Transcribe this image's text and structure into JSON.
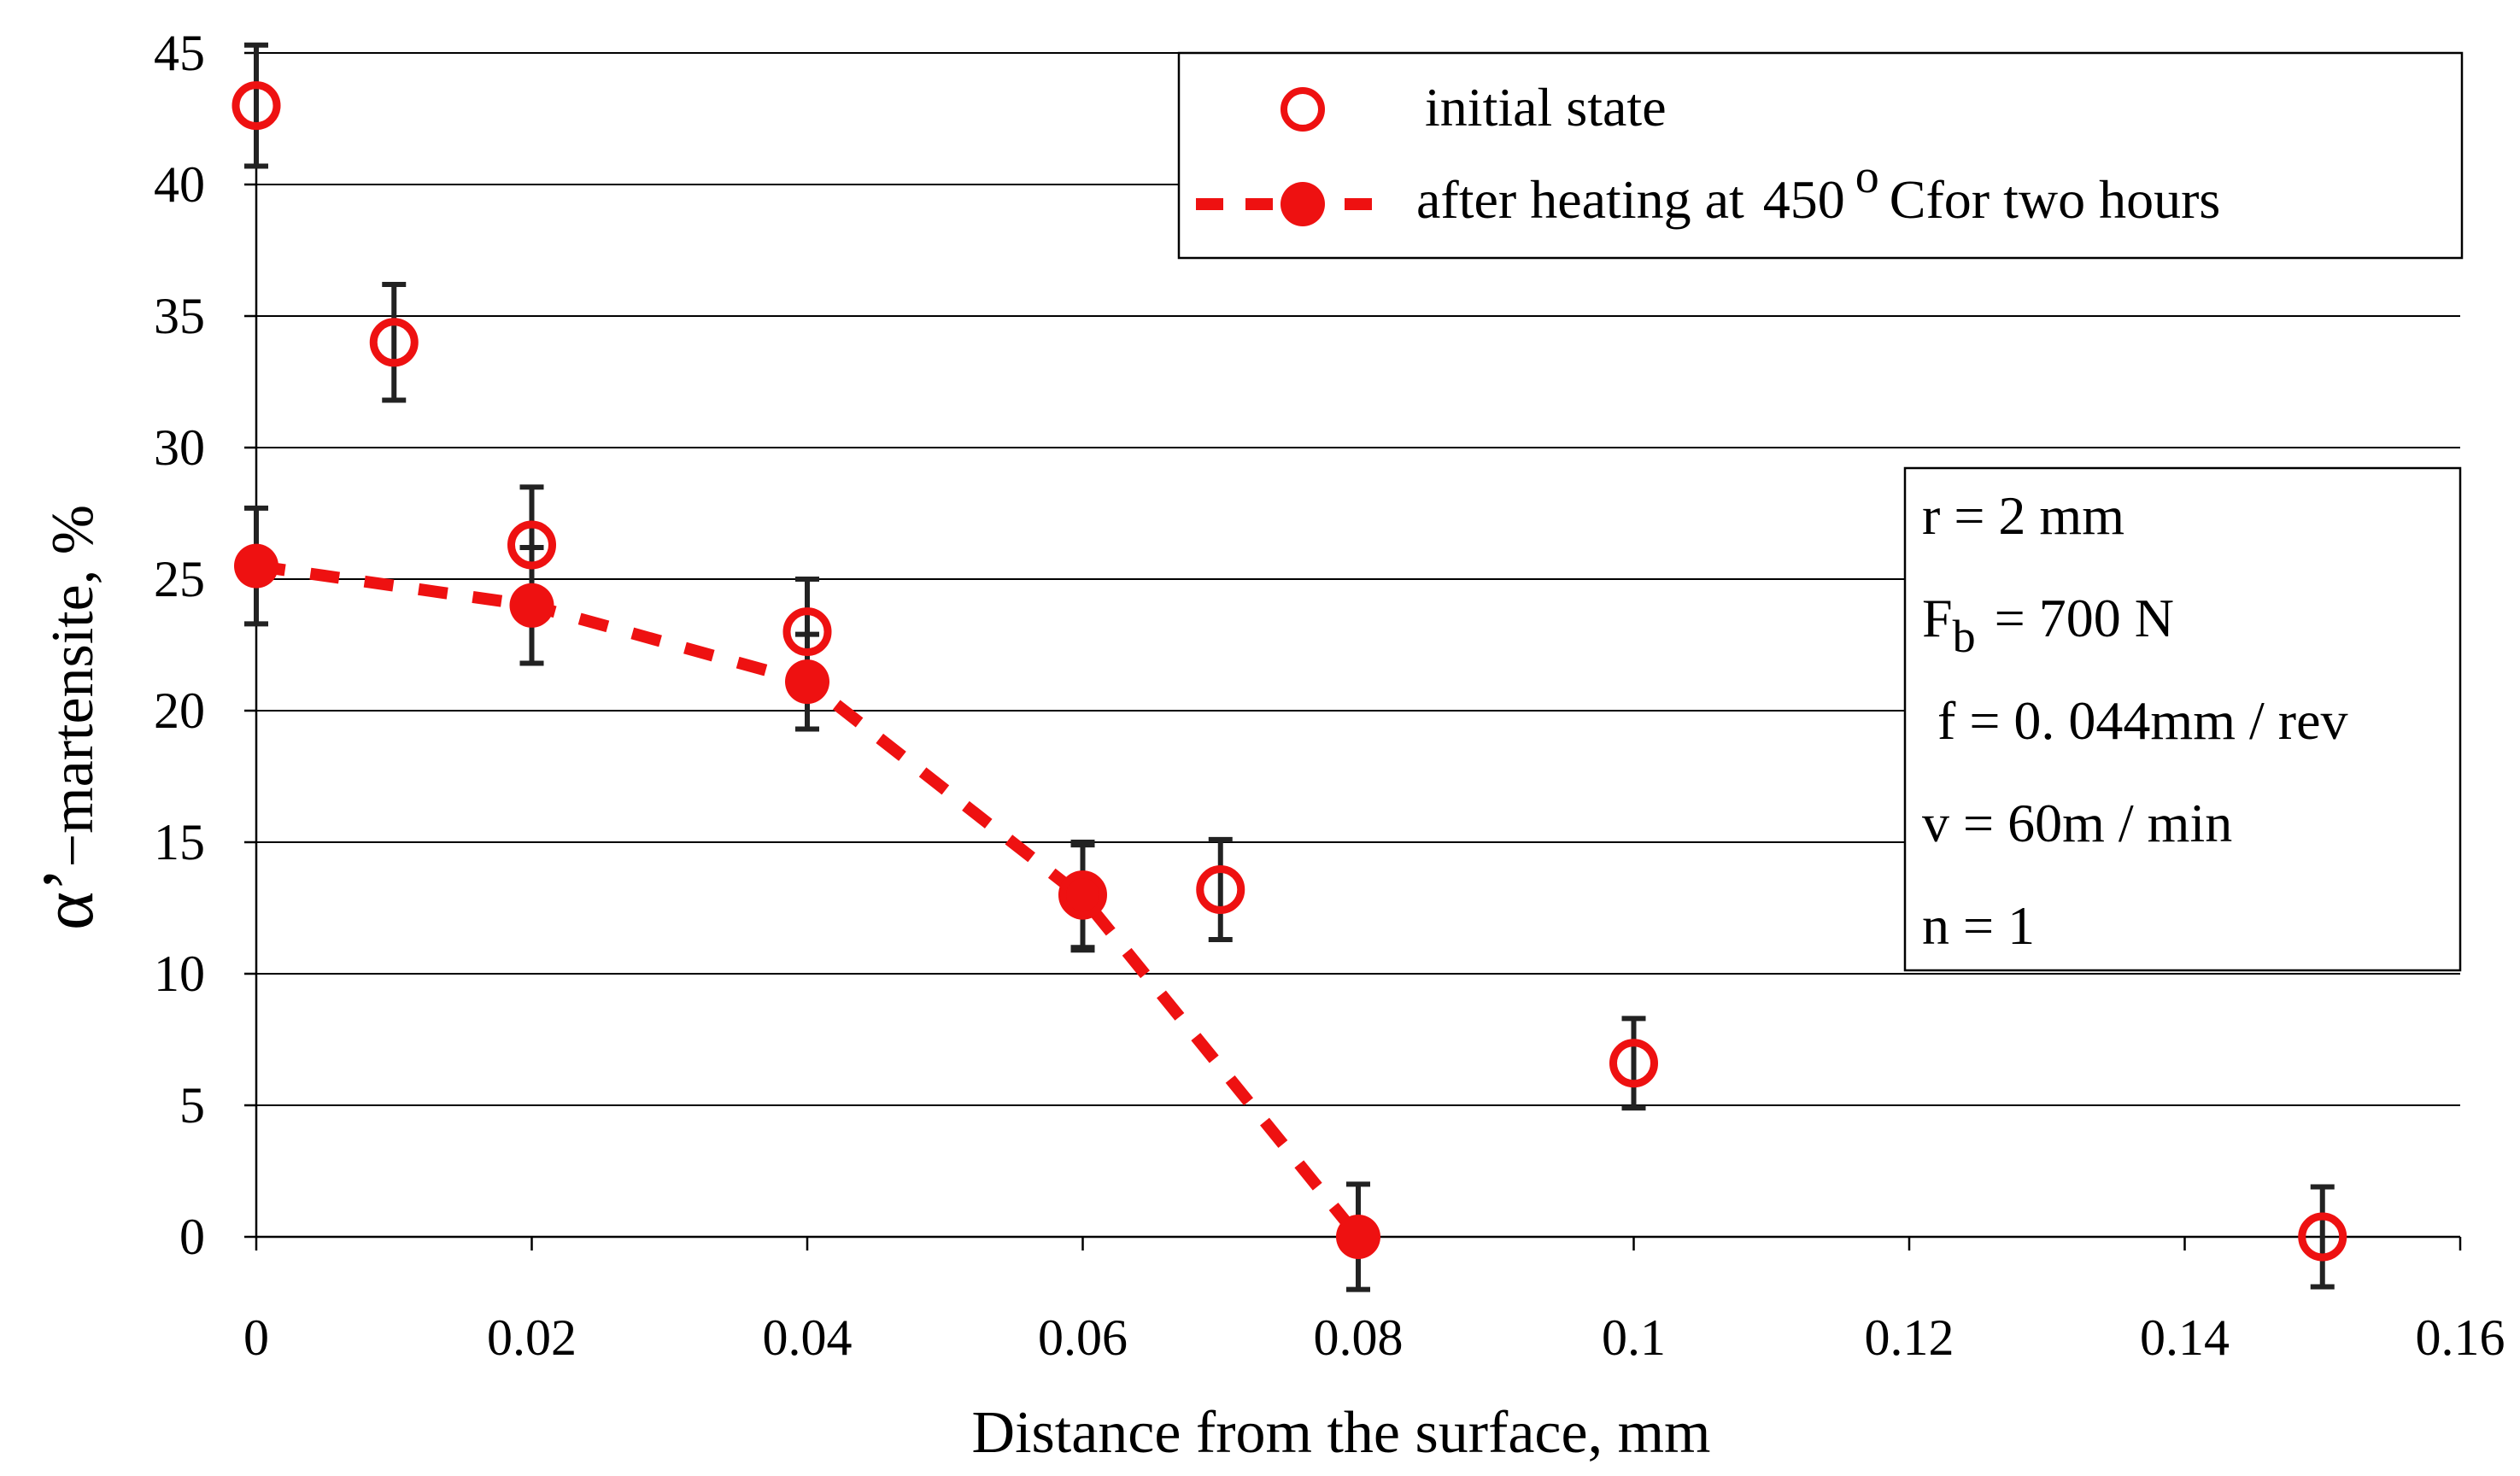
{
  "chart_data": {
    "type": "scatter",
    "xlabel": "Distance from the surface, mm",
    "ylabel_symbol": "α’",
    "ylabel_text": "−martensite, %",
    "xlim": [
      0,
      0.16
    ],
    "ylim": [
      0,
      45
    ],
    "x_ticks": [
      "0",
      "0.02",
      "0.04",
      "0.06",
      "0.08",
      "0.1",
      "0.12",
      "0.14",
      "0.16"
    ],
    "y_ticks": [
      "0",
      "5",
      "10",
      "15",
      "20",
      "25",
      "30",
      "35",
      "40",
      "45"
    ],
    "grid": true,
    "legend_position": "top-right",
    "series": [
      {
        "name": "initial state",
        "marker": "open-circle",
        "color": "#ee1111",
        "x": [
          0,
          0.01,
          0.02,
          0.04,
          0.06,
          0.07,
          0.1,
          0.15
        ],
        "y": [
          43,
          34,
          26.3,
          23,
          13,
          13.2,
          6.6,
          0
        ],
        "err": [
          2.3,
          2.2,
          2.2,
          2,
          2,
          1.9,
          1.7,
          1.9
        ]
      },
      {
        "name": "after heating at",
        "name_temp": "450",
        "name_degree": "o",
        "name_suffix": "Cfor two hours",
        "marker": "filled-circle",
        "line": "dashed",
        "color": "#ee1111",
        "x": [
          0,
          0.02,
          0.04,
          0.06,
          0.08
        ],
        "y": [
          25.5,
          24,
          21.1,
          12.9,
          0
        ],
        "err": [
          2.2,
          2.2,
          1.8,
          2,
          2
        ]
      }
    ],
    "parameters": {
      "r": "r = 2 mm",
      "fb_main": "F",
      "fb_sub": "b",
      "fb_value": "= 700  N",
      "f": "f = 0. 044mm / rev",
      "v": "v = 60m / min",
      "n": "n = 1"
    }
  },
  "colors": {
    "marker": "#ee1111",
    "errorbar": "#222222",
    "grid": "#000000"
  }
}
